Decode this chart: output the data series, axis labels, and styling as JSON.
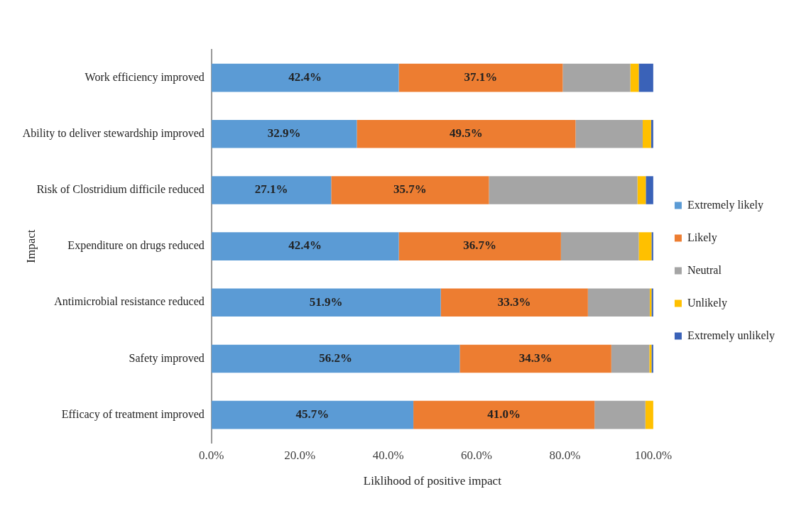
{
  "chart_data": {
    "type": "bar",
    "orientation": "horizontal",
    "stacked": true,
    "xlabel": "Liklihood of positive impact",
    "ylabel": "Impact",
    "categories": [
      "Work efficiency improved",
      "Ability to deliver stewardship improved",
      "Risk of Clostridium difficile reduced",
      "Expenditure on drugs reduced",
      "Antimicrobial resistance reduced",
      "Safety improved",
      "Efficacy of treatment improved"
    ],
    "series": [
      {
        "name": "Extremely likely",
        "color": "#5b9bd5",
        "values": [
          42.4,
          32.9,
          27.1,
          42.4,
          51.9,
          56.2,
          45.7
        ],
        "value_labels": [
          "42.4%",
          "32.9%",
          "27.1%",
          "42.4%",
          "51.9%",
          "56.2%",
          "45.7%"
        ]
      },
      {
        "name": "Likely",
        "color": "#ed7d31",
        "values": [
          37.1,
          49.5,
          35.7,
          36.7,
          33.3,
          34.3,
          41.0
        ],
        "value_labels": [
          "37.1%",
          "49.5%",
          "35.7%",
          "36.7%",
          "33.3%",
          "34.3%",
          "41.0%"
        ]
      },
      {
        "name": "Neutral",
        "color": "#a5a5a5",
        "values": [
          15.3,
          15.2,
          33.6,
          17.6,
          14.0,
          8.6,
          11.5
        ]
      },
      {
        "name": "Unlikely",
        "color": "#ffc000",
        "values": [
          1.9,
          1.9,
          1.9,
          2.9,
          0.4,
          0.5,
          1.8
        ]
      },
      {
        "name": "Extremely unlikely",
        "color": "#3a62b8",
        "values": [
          3.3,
          0.5,
          1.7,
          0.4,
          0.4,
          0.4,
          0
        ]
      }
    ],
    "xlim": [
      0,
      100
    ],
    "xticks": [
      {
        "value": 0,
        "label": "0.0%"
      },
      {
        "value": 20,
        "label": "20.0%"
      },
      {
        "value": 40,
        "label": "40.0%"
      },
      {
        "value": 60,
        "label": "60.0%"
      },
      {
        "value": 80,
        "label": "80.0%"
      },
      {
        "value": 100,
        "label": "100.0%"
      }
    ],
    "grid": false,
    "legend": "right"
  }
}
